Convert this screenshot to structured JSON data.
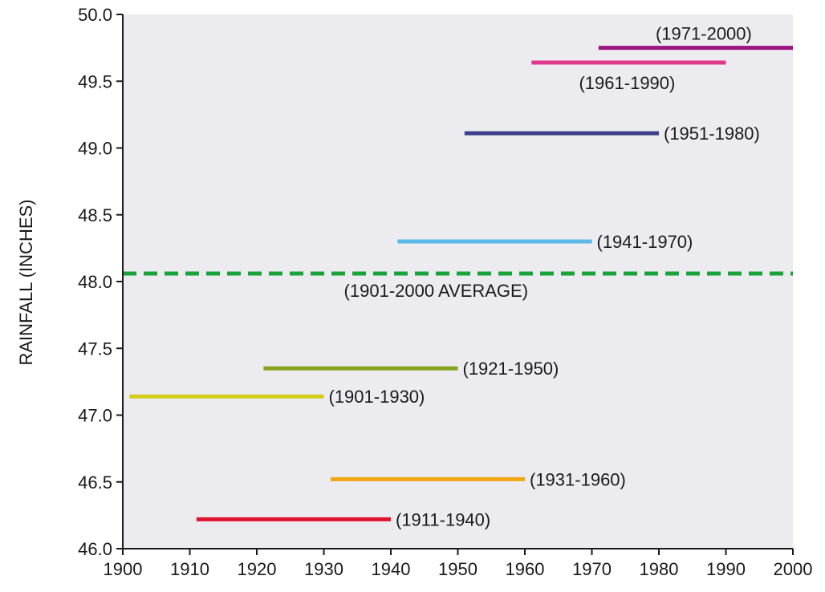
{
  "chart_data": {
    "type": "line",
    "title": "",
    "xlabel": "",
    "ylabel": "RAINFALL (INCHES)",
    "xlim": [
      1900,
      2000
    ],
    "ylim": [
      46.0,
      50.0
    ],
    "xticks": [
      1900,
      1910,
      1920,
      1930,
      1940,
      1950,
      1960,
      1970,
      1980,
      1990,
      2000
    ],
    "yticks": [
      "46.0",
      "46.5",
      "47.0",
      "47.5",
      "48.0",
      "48.5",
      "49.0",
      "49.5",
      "50.0"
    ],
    "grid": false,
    "background": "#ecebef",
    "reference_line": {
      "label": "(1901-2000 AVERAGE)",
      "value": 48.06,
      "color": "#1aa33a",
      "style": "dashed"
    },
    "series": [
      {
        "label": "(1901-1930)",
        "x_start": 1901,
        "x_end": 1930,
        "value": 47.14,
        "color": "#d4cc1c"
      },
      {
        "label": "(1911-1940)",
        "x_start": 1911,
        "x_end": 1940,
        "value": 46.22,
        "color": "#e0142c"
      },
      {
        "label": "(1921-1950)",
        "x_start": 1921,
        "x_end": 1950,
        "value": 47.35,
        "color": "#86a31d"
      },
      {
        "label": "(1931-1960)",
        "x_start": 1931,
        "x_end": 1960,
        "value": 46.52,
        "color": "#f2a612"
      },
      {
        "label": "(1941-1970)",
        "x_start": 1941,
        "x_end": 1970,
        "value": 48.3,
        "color": "#5bb8e8"
      },
      {
        "label": "(1951-1980)",
        "x_start": 1951,
        "x_end": 1980,
        "value": 49.11,
        "color": "#3b3e8a"
      },
      {
        "label": "(1961-1990)",
        "x_start": 1961,
        "x_end": 1990,
        "value": 49.64,
        "color": "#e0378d"
      },
      {
        "label": "(1971-2000)",
        "x_start": 1971,
        "x_end": 2000,
        "value": 49.75,
        "color": "#9c1480"
      }
    ]
  }
}
